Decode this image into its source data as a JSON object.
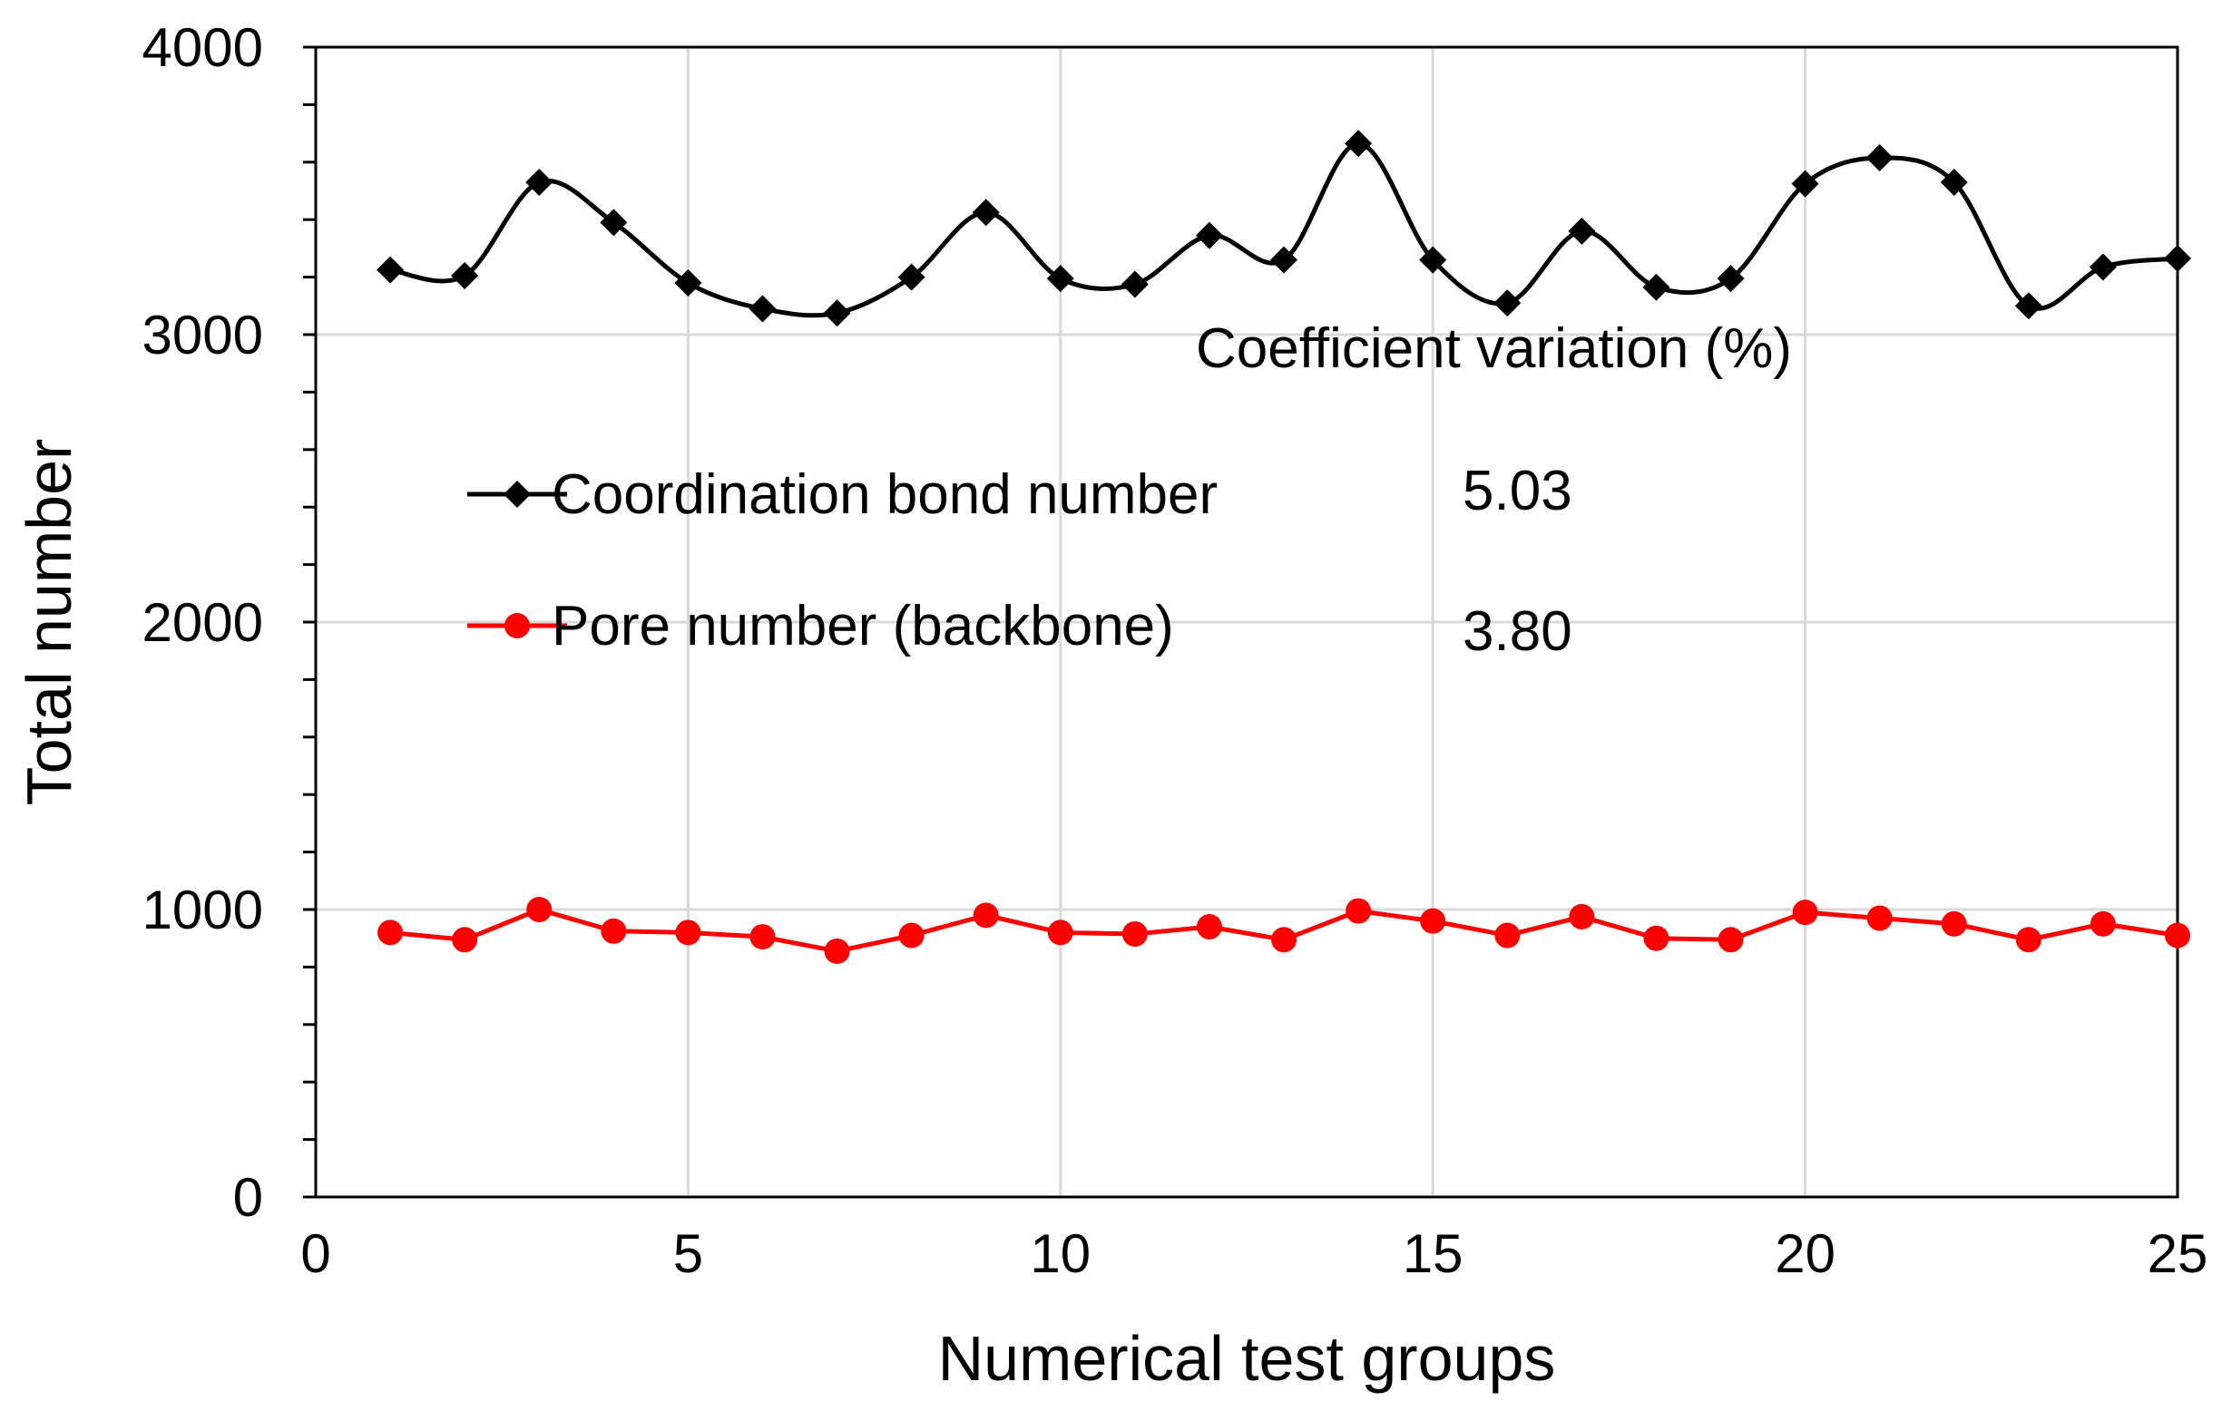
{
  "chart_data": {
    "type": "line",
    "title": "",
    "xlabel": "Numerical test groups",
    "ylabel": "Total number",
    "xlim": [
      0,
      25
    ],
    "ylim": [
      0,
      4000
    ],
    "xticks": [
      "0",
      "5",
      "10",
      "15",
      "20",
      "25"
    ],
    "yticks": [
      "0",
      "1000",
      "2000",
      "3000",
      "4000"
    ],
    "x": [
      1,
      2,
      3,
      4,
      5,
      6,
      7,
      8,
      9,
      10,
      11,
      12,
      13,
      14,
      15,
      16,
      17,
      18,
      19,
      20,
      21,
      22,
      23,
      24,
      25
    ],
    "series": [
      {
        "name": "Coordination bond number",
        "color": "#000000",
        "marker": "diamond",
        "smooth": true,
        "cv": "5.03",
        "values": [
          3225,
          3205,
          3530,
          3390,
          3180,
          3090,
          3075,
          3200,
          3425,
          3195,
          3175,
          3345,
          3260,
          3665,
          3260,
          3110,
          3360,
          3165,
          3195,
          3525,
          3615,
          3530,
          3100,
          3235,
          3265
        ]
      },
      {
        "name": "Pore number (backbone)",
        "color": "#ff0000",
        "marker": "circle",
        "smooth": false,
        "cv": "3.80",
        "values": [
          920,
          895,
          1000,
          925,
          920,
          905,
          855,
          910,
          980,
          920,
          915,
          940,
          895,
          995,
          960,
          910,
          975,
          900,
          895,
          990,
          970,
          950,
          895,
          950,
          910
        ]
      }
    ],
    "legend_position": "center-left",
    "grid": true,
    "annotation_title": "Coefficient variation (%)"
  }
}
